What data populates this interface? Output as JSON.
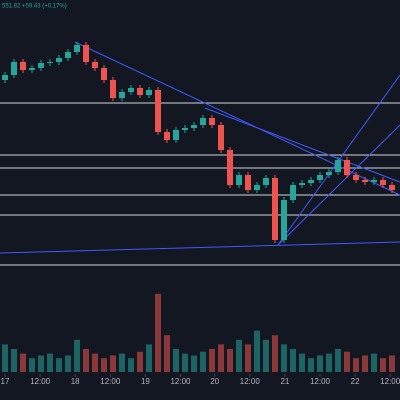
{
  "chart_data": {
    "type": "candlestick",
    "subtitle": "551.82 +59.43 (+0.17%)",
    "open": [
      190,
      195,
      208,
      200,
      202,
      207,
      208,
      212,
      218,
      225,
      208,
      202,
      190,
      172,
      178,
      182,
      175,
      180,
      138,
      130,
      140,
      142,
      145,
      152,
      145,
      120,
      85,
      95,
      80,
      85,
      92,
      30,
      70,
      85,
      87,
      90,
      95,
      98,
      110,
      95,
      90,
      88,
      90,
      85
    ],
    "high": [
      198,
      211,
      211,
      205,
      210,
      211,
      215,
      221,
      228,
      228,
      211,
      205,
      193,
      181,
      185,
      185,
      183,
      183,
      141,
      143,
      145,
      148,
      155,
      155,
      148,
      123,
      98,
      98,
      88,
      95,
      95,
      73,
      88,
      90,
      93,
      98,
      101,
      113,
      113,
      98,
      93,
      93,
      93,
      88
    ],
    "low": [
      187,
      192,
      197,
      197,
      199,
      204,
      205,
      209,
      215,
      205,
      199,
      187,
      169,
      169,
      175,
      172,
      172,
      135,
      127,
      127,
      137,
      139,
      142,
      142,
      117,
      82,
      82,
      77,
      77,
      82,
      27,
      27,
      67,
      82,
      84,
      87,
      92,
      95,
      92,
      87,
      85,
      85,
      82,
      77
    ],
    "close": [
      195,
      208,
      200,
      202,
      207,
      208,
      212,
      218,
      225,
      208,
      202,
      190,
      172,
      178,
      182,
      175,
      180,
      138,
      130,
      140,
      142,
      145,
      152,
      145,
      120,
      85,
      95,
      80,
      85,
      92,
      30,
      70,
      85,
      87,
      90,
      95,
      98,
      110,
      95,
      90,
      88,
      90,
      85,
      80
    ],
    "volume": [
      30,
      25,
      20,
      15,
      18,
      20,
      15,
      18,
      35,
      25,
      20,
      15,
      18,
      20,
      15,
      22,
      30,
      85,
      40,
      25,
      20,
      18,
      22,
      25,
      30,
      25,
      35,
      30,
      45,
      35,
      40,
      30,
      25,
      20,
      15,
      18,
      20,
      25,
      22,
      15,
      18,
      20,
      15,
      18
    ],
    "up_color": "#26a69a",
    "down_color": "#ef5350",
    "ylim": [
      0,
      270
    ],
    "vlim": [
      0,
      100
    ],
    "xticks": [
      {
        "value": 0,
        "label": "17"
      },
      {
        "value": 3.9,
        "label": "12:00"
      },
      {
        "value": 7.8,
        "label": "18"
      },
      {
        "value": 11.7,
        "label": "12:00"
      },
      {
        "value": 15.6,
        "label": "19"
      },
      {
        "value": 19.5,
        "label": "12:00"
      },
      {
        "value": 23.3,
        "label": "20"
      },
      {
        "value": 27.2,
        "label": "12:00"
      },
      {
        "value": 31.1,
        "label": "21"
      },
      {
        "value": 35,
        "label": "12:00"
      },
      {
        "value": 38.9,
        "label": "22"
      },
      {
        "value": 42.8,
        "label": "12:00"
      }
    ]
  }
}
